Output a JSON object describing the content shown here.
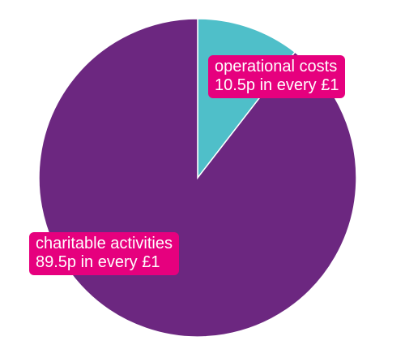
{
  "chart_data": {
    "type": "pie",
    "title": "",
    "slices": [
      {
        "label": "operational costs",
        "value": 10.5,
        "value_label": "10.5p in every £1",
        "color": "#4fbfc9"
      },
      {
        "label": "charitable activities",
        "value": 89.5,
        "value_label": "89.5p in every £1",
        "color": "#6c2780"
      }
    ],
    "start_angle": "12 o'clock",
    "direction": "clockwise",
    "legend": "none",
    "label_color": "#e6007e",
    "slice_border_color": "#ffffff"
  }
}
